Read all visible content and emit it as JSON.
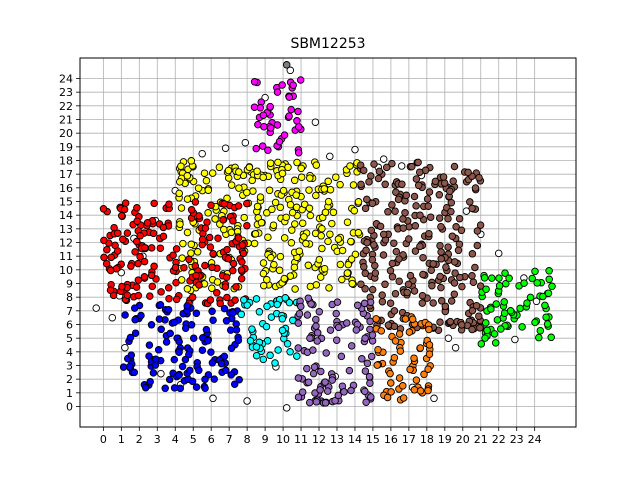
{
  "chart_data": {
    "type": "scatter",
    "title": "SBM12253",
    "xlabel": "",
    "ylabel": "",
    "xlim": [
      -1.3,
      26.3
    ],
    "ylim": [
      -1.5,
      25.5
    ],
    "x_ticks": [
      0,
      1,
      2,
      3,
      4,
      5,
      6,
      7,
      8,
      9,
      10,
      11,
      12,
      13,
      14,
      15,
      16,
      17,
      18,
      19,
      20,
      21,
      22,
      23,
      24
    ],
    "y_ticks": [
      0,
      1,
      2,
      3,
      4,
      5,
      6,
      7,
      8,
      9,
      10,
      11,
      12,
      13,
      14,
      15,
      16,
      17,
      18,
      19,
      20,
      21,
      22,
      23,
      24
    ],
    "grid": true,
    "marker_edge": "#000000",
    "unassigned_color": "#ffffff",
    "clusters": [
      {
        "color": "#ff00ff",
        "x_range": [
          8.4,
          11.0
        ],
        "y_range": [
          18.5,
          24.0
        ]
      },
      {
        "color": "#ffff00",
        "x_range": [
          4.2,
          14.3
        ],
        "y_range": [
          8.5,
          18.0
        ]
      },
      {
        "color": "#8c564b",
        "x_range": [
          14.3,
          21.0
        ],
        "y_range": [
          5.5,
          18.0
        ]
      },
      {
        "color": "#ff0000",
        "x_range": [
          0.0,
          8.0
        ],
        "y_range": [
          7.5,
          15.0
        ]
      },
      {
        "color": "#0000ff",
        "x_range": [
          1.1,
          7.6
        ],
        "y_range": [
          1.3,
          7.5
        ]
      },
      {
        "color": "#00ffff",
        "x_range": [
          7.6,
          10.8
        ],
        "y_range": [
          3.0,
          8.0
        ]
      },
      {
        "color": "#9467bd",
        "x_range": [
          10.8,
          15.1
        ],
        "y_range": [
          0.2,
          8.0
        ]
      },
      {
        "color": "#ff7f0e",
        "x_range": [
          15.1,
          18.2
        ],
        "y_range": [
          0.3,
          7.0
        ]
      },
      {
        "color": "#00ff00",
        "x_range": [
          21.0,
          25.0
        ],
        "y_range": [
          4.5,
          10.0
        ]
      }
    ]
  }
}
